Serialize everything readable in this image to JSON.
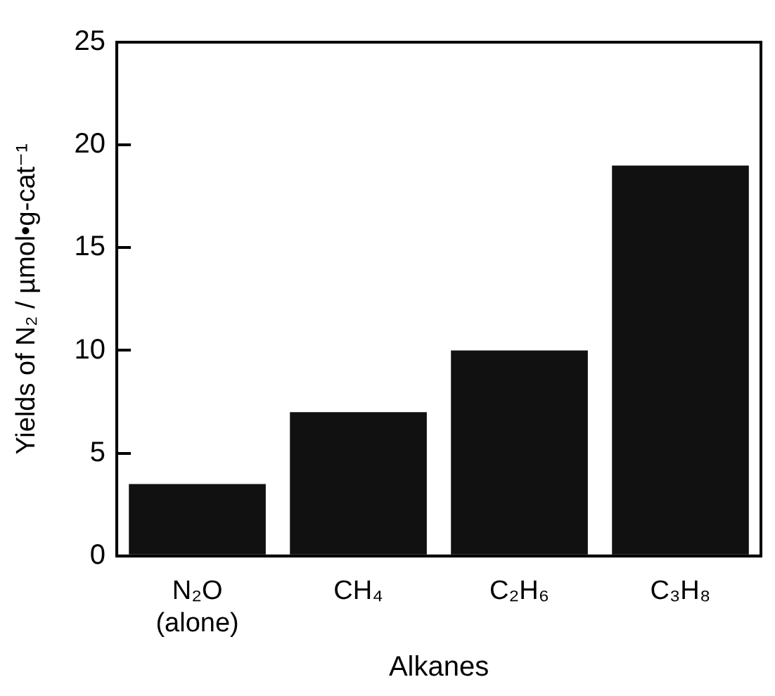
{
  "chart_data": {
    "type": "bar",
    "xlabel": "Alkanes",
    "ylabel": "Yields of N₂ / µmol•g-cat⁻¹",
    "categories": [
      "N₂O\n(alone)",
      "CH₄",
      "C₂H₆",
      "C₃H₈"
    ],
    "values": [
      3.5,
      7,
      10,
      19
    ],
    "color": "#111111",
    "ylim": [
      0,
      25
    ],
    "yticks": [
      0,
      5,
      10,
      15,
      20,
      25
    ],
    "grid": false,
    "legend": false
  }
}
